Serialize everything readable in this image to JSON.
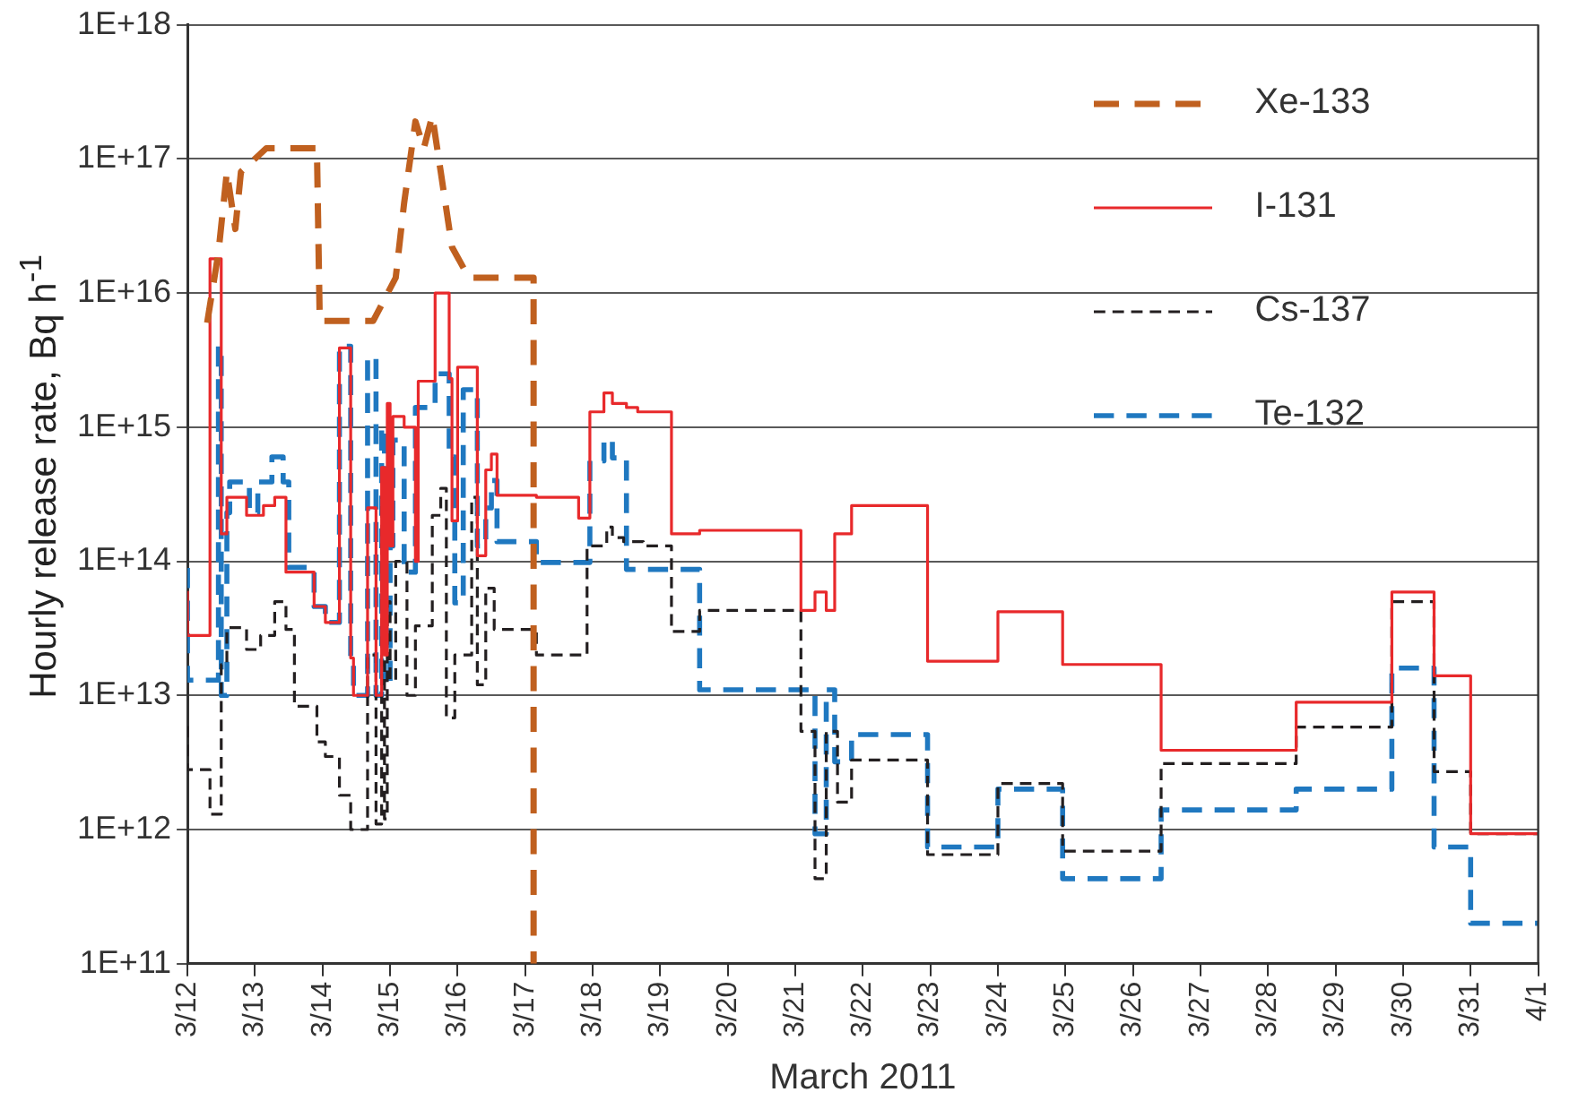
{
  "chart_data": {
    "type": "step",
    "xlabel": "March 2011",
    "ylabel": "Hourly release rate, Bq h$^{-1}$",
    "xlim": [
      "2011-03-12",
      "2011-04-01"
    ],
    "xticks": [
      {
        "value": "2011-03-12",
        "label": "3/12"
      },
      {
        "value": "2011-03-13",
        "label": "3/13"
      },
      {
        "value": "2011-03-14",
        "label": "3/14"
      },
      {
        "value": "2011-03-15",
        "label": "3/15"
      },
      {
        "value": "2011-03-16",
        "label": "3/16"
      },
      {
        "value": "2011-03-17",
        "label": "3/17"
      },
      {
        "value": "2011-03-18",
        "label": "3/18"
      },
      {
        "value": "2011-03-19",
        "label": "3/19"
      },
      {
        "value": "2011-03-20",
        "label": "3/20"
      },
      {
        "value": "2011-03-21",
        "label": "3/21"
      },
      {
        "value": "2011-03-22",
        "label": "3/22"
      },
      {
        "value": "2011-03-23",
        "label": "3/23"
      },
      {
        "value": "2011-03-24",
        "label": "3/24"
      },
      {
        "value": "2011-03-25",
        "label": "3/25"
      },
      {
        "value": "2011-03-26",
        "label": "3/26"
      },
      {
        "value": "2011-03-27",
        "label": "3/27"
      },
      {
        "value": "2011-03-28",
        "label": "3/28"
      },
      {
        "value": "2011-03-29",
        "label": "3/29"
      },
      {
        "value": "2011-03-30",
        "label": "3/30"
      },
      {
        "value": "2011-03-31",
        "label": "3/31"
      },
      {
        "value": "2011-04-01",
        "label": "4/1"
      }
    ],
    "ylim": [
      100000000000.0,
      1e+18
    ],
    "yticks": [
      {
        "value": 100000000000.0,
        "label": "1E+11"
      },
      {
        "value": 1000000000000.0,
        "label": "1E+12"
      },
      {
        "value": 10000000000000.0,
        "label": "1E+13"
      },
      {
        "value": 100000000000000.0,
        "label": "1E+14"
      },
      {
        "value": 1000000000000000.0,
        "label": "1E+15"
      },
      {
        "value": 1e+16,
        "label": "1E+16"
      },
      {
        "value": 1e+17,
        "label": "1E+17"
      },
      {
        "value": 1e+18,
        "label": "1E+18"
      }
    ],
    "log": "y",
    "grid": "y",
    "legend": "top right",
    "marker": "none",
    "series": [
      {
        "name": "Xe-133",
        "type": "line",
        "line_style": "dashed",
        "color": "#c0601f",
        "x": [
          "2011-03-12T07:00",
          "2011-03-12T11:00",
          "2011-03-12T14:00",
          "2011-03-12T17:00",
          "2011-03-12T19:00",
          "2011-03-13T04:00",
          "2011-03-13T22:00",
          "2011-03-13T23:00",
          "2011-03-14T18:00",
          "2011-03-15T02:00",
          "2011-03-15T05:00",
          "2011-03-15T09:00",
          "2011-03-15T12:00",
          "2011-03-15T15:00",
          "2011-03-15T18:00",
          "2011-03-15T22:00",
          "2011-03-16T04:00",
          "2011-03-17T03:00",
          "2011-03-17T03:00"
        ],
        "values": [
          6000000000000000.0,
          2e+16,
          8e+16,
          3e+16,
          8e+16,
          1.2e+17,
          1.2e+17,
          6200000000000000.0,
          6200000000000000.0,
          1.3e+16,
          4.7e+16,
          1.9e+17,
          1.2e+17,
          2.1e+17,
          8e+16,
          2.2e+16,
          1.3e+16,
          1.3e+16,
          100000000000.0
        ]
      },
      {
        "name": "I-131",
        "line_style": "solid",
        "color": "#e8292b",
        "x": [
          "2011-03-12T00:00",
          "2011-03-12T08:00",
          "2011-03-12T12:00",
          "2011-03-12T14:00",
          "2011-03-12T21:00",
          "2011-03-13T03:00",
          "2011-03-13T07:00",
          "2011-03-13T11:00",
          "2011-03-13T21:00",
          "2011-03-14T01:00",
          "2011-03-14T06:00",
          "2011-03-14T10:00",
          "2011-03-14T11:00",
          "2011-03-14T16:00",
          "2011-03-14T19:00",
          "2011-03-14T21:00",
          "2011-03-14T22:00",
          "2011-03-14T23:00",
          "2011-03-15T00:00",
          "2011-03-15T01:00",
          "2011-03-15T05:00",
          "2011-03-15T09:00",
          "2011-03-15T10:00",
          "2011-03-15T16:00",
          "2011-03-15T21:00",
          "2011-03-15T22:00",
          "2011-03-16T00:00",
          "2011-03-16T07:00",
          "2011-03-16T10:00",
          "2011-03-16T12:00",
          "2011-03-16T14:00",
          "2011-03-17T04:00",
          "2011-03-17T19:00",
          "2011-03-17T23:00",
          "2011-03-18T04:00",
          "2011-03-18T07:00",
          "2011-03-18T12:00",
          "2011-03-18T16:00",
          "2011-03-19T04:00",
          "2011-03-19T14:00",
          "2011-03-21T02:00",
          "2011-03-21T07:00",
          "2011-03-21T11:00",
          "2011-03-21T14:00",
          "2011-03-21T20:00",
          "2011-03-22T23:00",
          "2011-03-24T00:00",
          "2011-03-24T23:00",
          "2011-03-26T10:00",
          "2011-03-28T10:00",
          "2011-03-29T20:00",
          "2011-03-30T11:00",
          "2011-03-31T00:00",
          "2011-03-31T22:00",
          "2011-04-01T00:00"
        ],
        "values": [
          60000000000000.0,
          28000000000000.0,
          1.8e+16,
          160000000000000.0,
          300000000000000.0,
          220000000000000.0,
          260000000000000.0,
          300000000000000.0,
          83000000000000.0,
          46000000000000.0,
          35000000000000.0,
          3900000000000000.0,
          19000000000000.0,
          10000000000000.0,
          250000000000000.0,
          10000000000000.0,
          500000000000000.0,
          20000000000000.0,
          1500000000000000.0,
          130000000000000.0,
          1200000000000000.0,
          1000000000000000.0,
          100000000000000.0,
          2200000000000000.0,
          1e+16,
          2300000000000000.0,
          200000000000000.0,
          2800000000000000.0,
          110000000000000.0,
          480000000000000.0,
          630000000000000.0,
          310000000000000.0,
          300000000000000.0,
          210000000000000.0,
          1300000000000000.0,
          1800000000000000.0,
          1500000000000000.0,
          1400000000000000.0,
          1300000000000000.0,
          160000000000000.0,
          170000000000000.0,
          43000000000000.0,
          59000000000000.0,
          43000000000000.0,
          160000000000000.0,
          260000000000000.0,
          18000000000000.0,
          42000000000000.0,
          17000000000000.0,
          3900000000000.0,
          8900000000000.0,
          59000000000000.0,
          14000000000000.0,
          930000000000.0,
          930000000000.0
        ]
      },
      {
        "name": "Cs-137",
        "line_style": "dashed",
        "color": "#231f20",
        "x": [
          "2011-03-12T00:00",
          "2011-03-12T08:00",
          "2011-03-12T12:00",
          "2011-03-12T14:00",
          "2011-03-12T21:00",
          "2011-03-13T02:00",
          "2011-03-13T07:00",
          "2011-03-13T11:00",
          "2011-03-13T14:00",
          "2011-03-13T22:00",
          "2011-03-14T01:00",
          "2011-03-14T06:00",
          "2011-03-14T10:00",
          "2011-03-14T16:00",
          "2011-03-14T19:00",
          "2011-03-14T21:00",
          "2011-03-14T22:00",
          "2011-03-14T23:00",
          "2011-03-15T00:00",
          "2011-03-15T02:00",
          "2011-03-15T06:00",
          "2011-03-15T09:00",
          "2011-03-15T15:00",
          "2011-03-15T18:00",
          "2011-03-15T20:00",
          "2011-03-15T23:00",
          "2011-03-16T05:00",
          "2011-03-16T07:00",
          "2011-03-16T10:00",
          "2011-03-16T13:00",
          "2011-03-17T04:00",
          "2011-03-17T22:00",
          "2011-03-18T05:00",
          "2011-03-18T07:00",
          "2011-03-18T11:00",
          "2011-03-18T18:00",
          "2011-03-19T04:00",
          "2011-03-19T14:00",
          "2011-03-21T02:00",
          "2011-03-21T07:00",
          "2011-03-21T11:00",
          "2011-03-21T15:00",
          "2011-03-21T20:00",
          "2011-03-22T23:00",
          "2011-03-24T00:00",
          "2011-03-24T23:00",
          "2011-03-26T10:00",
          "2011-03-28T10:00",
          "2011-03-29T20:00",
          "2011-03-30T11:00",
          "2011-03-31T00:00",
          "2011-03-31T22:00",
          "2011-04-01T00:00"
        ],
        "values": [
          5900000000000.0,
          2800000000000.0,
          1300000000000.0,
          17000000000000.0,
          32000000000000.0,
          22000000000000.0,
          28000000000000.0,
          50000000000000.0,
          31000000000000.0,
          8300000000000.0,
          4500000000000.0,
          3500000000000.0,
          1800000000000.0,
          1000000000000.0,
          20000000000000.0,
          1100000000000.0,
          300000000000000.0,
          1200000000000.0,
          50000000000000.0,
          13000000000000.0,
          100000000000000.0,
          10000000000000.0,
          33000000000000.0,
          220000000000000.0,
          350000000000000.0,
          6800000000000.0,
          20000000000000.0,
          300000000000000.0,
          12000000000000.0,
          63000000000000.0,
          31000000000000.0,
          20000000000000.0,
          130000000000000.0,
          180000000000000.0,
          150000000000000.0,
          140000000000000.0,
          130000000000000.0,
          30000000000000.0,
          43000000000000.0,
          5400000000000.0,
          430000000000.0,
          5400000000000.0,
          1600000000000.0,
          3300000000000.0,
          650000000000.0,
          2200000000000.0,
          690000000000.0,
          3100000000000.0,
          5800000000000.0,
          50000000000000.0,
          2700000000000.0,
          930000000000.0,
          930000000000.0
        ]
      },
      {
        "name": "Te-132",
        "line_style": "dashed",
        "color": "#1f78c0",
        "x": [
          "2011-03-12T00:00",
          "2011-03-12T11:00",
          "2011-03-12T12:00",
          "2011-03-12T14:00",
          "2011-03-12T15:00",
          "2011-03-12T22:00",
          "2011-03-13T01:00",
          "2011-03-13T06:00",
          "2011-03-13T10:00",
          "2011-03-13T12:00",
          "2011-03-13T21:00",
          "2011-03-14T01:00",
          "2011-03-14T06:00",
          "2011-03-14T10:00",
          "2011-03-14T11:00",
          "2011-03-14T16:00",
          "2011-03-14T19:00",
          "2011-03-14T21:00",
          "2011-03-14T22:00",
          "2011-03-15T00:00",
          "2011-03-15T01:00",
          "2011-03-15T05:00",
          "2011-03-15T09:00",
          "2011-03-15T16:00",
          "2011-03-15T21:00",
          "2011-03-15T23:00",
          "2011-03-16T02:00",
          "2011-03-16T07:00",
          "2011-03-16T10:00",
          "2011-03-16T12:00",
          "2011-03-16T14:00",
          "2011-03-17T04:00",
          "2011-03-17T23:00",
          "2011-03-18T04:00",
          "2011-03-18T07:00",
          "2011-03-18T12:00",
          "2011-03-19T14:00",
          "2011-03-21T07:00",
          "2011-03-21T11:00",
          "2011-03-21T14:00",
          "2011-03-21T20:00",
          "2011-03-22T23:00",
          "2011-03-24T00:00",
          "2011-03-24T23:00",
          "2011-03-26T10:00",
          "2011-03-28T10:00",
          "2011-03-29T20:00",
          "2011-03-30T11:00",
          "2011-03-31T00:00",
          "2011-03-31T22:00",
          "2011-04-01T00:00"
        ],
        "values": [
          89000000000000.0,
          13000000000000.0,
          4000000000000000.0,
          10000000000000.0,
          230000000000000.0,
          390000000000000.0,
          230000000000000.0,
          390000000000000.0,
          600000000000000.0,
          390000000000000.0,
          90000000000000.0,
          46000000000000.0,
          35000000000000.0,
          4000000000000000.0,
          19000000000000.0,
          10000000000000.0,
          3300000000000000.0,
          10000000000000.0,
          1000000000000000.0,
          12000000000000.0,
          130000000000000.0,
          800000000000000.0,
          83000000000000.0,
          1400000000000000.0,
          2500000000000000.0,
          600000000000000.0,
          49000000000000.0,
          1900000000000000.0,
          130000000000000.0,
          250000000000000.0,
          400000000000000.0,
          140000000000000.0,
          98000000000000.0,
          560000000000000.0,
          800000000000000.0,
          590000000000000.0,
          87000000000000.0,
          11000000000000.0,
          930000000000.0,
          11000000000000.0,
          3200000000000.0,
          5100000000000.0,
          740000000000.0,
          2000000000000.0,
          430000000000.0,
          1400000000000.0,
          2000000000000.0,
          16000000000000.0,
          740000000000.0,
          200000000000.0,
          200000000000.0
        ]
      }
    ]
  }
}
